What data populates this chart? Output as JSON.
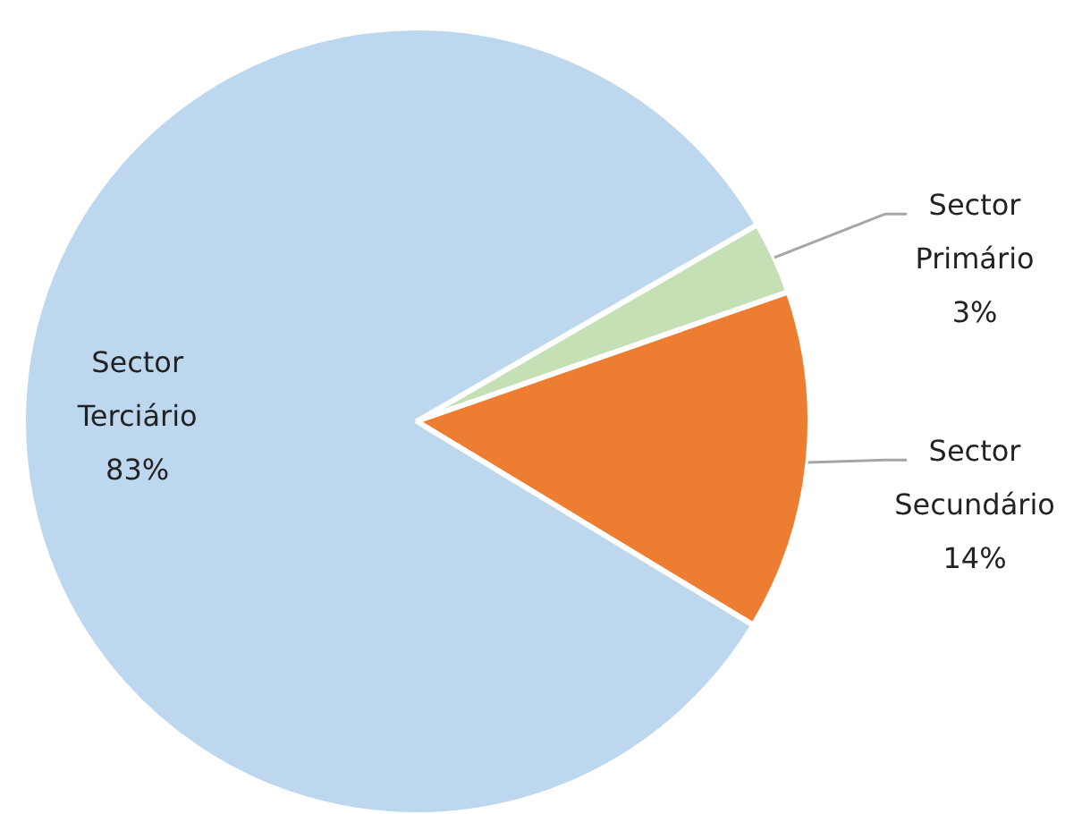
{
  "chart_data": {
    "type": "pie",
    "categories": [
      "Sector Primário",
      "Sector Secundário",
      "Sector Terciário"
    ],
    "values": [
      3,
      14,
      83
    ],
    "value_labels": [
      "3%",
      "14%",
      "83%"
    ],
    "colors": [
      "#c5e0b4",
      "#ed7d31",
      "#bdd7ee"
    ],
    "legend": false
  }
}
